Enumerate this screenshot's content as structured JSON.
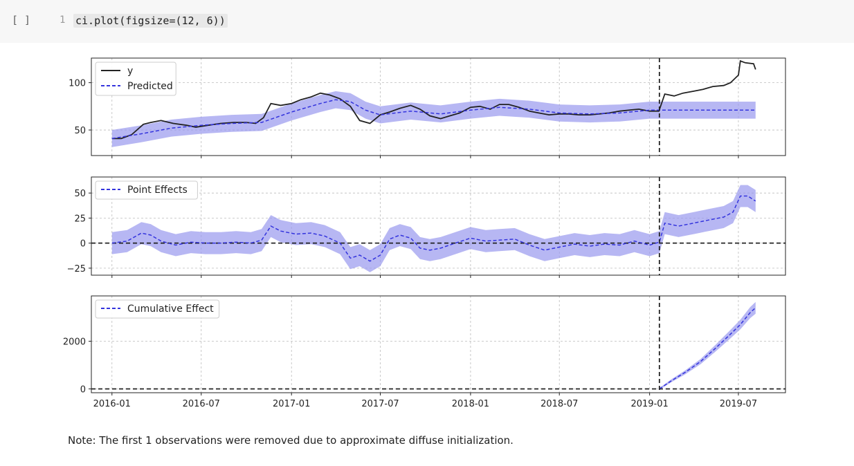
{
  "cell": {
    "run_indicator": "[ ]",
    "line_number": "1",
    "code": "ci.plot(figsize=(12, 6))"
  },
  "note": "Note: The first 1 observations were removed due to approximate diffuse initialization.",
  "colors": {
    "actual": "#222222",
    "predicted": "#3333dd",
    "band": "#9999ee",
    "grid": "#bbbbbb",
    "intervention": "#222222"
  },
  "chart_data": [
    {
      "type": "line",
      "intervention_date": "2019-01-21",
      "xlim": [
        "2015-11-20",
        "2019-10-05"
      ],
      "x_ticks": [
        "2016-01",
        "2016-07",
        "2017-01",
        "2017-07",
        "2018-01",
        "2018-07",
        "2019-01",
        "2019-07"
      ],
      "ylim": [
        23,
        126
      ],
      "y_ticks": [
        50,
        100
      ],
      "grid": true,
      "legend_position": "top-left",
      "series": [
        {
          "name": "y",
          "style": "solid",
          "x": [
            "2016-01-01",
            "2016-01-20",
            "2016-02-10",
            "2016-03-05",
            "2016-03-20",
            "2016-04-10",
            "2016-05-05",
            "2016-06-01",
            "2016-06-20",
            "2016-07-15",
            "2016-08-10",
            "2016-09-05",
            "2016-10-01",
            "2016-10-20",
            "2016-11-05",
            "2016-11-20",
            "2016-12-10",
            "2017-01-01",
            "2017-01-20",
            "2017-02-10",
            "2017-03-01",
            "2017-03-20",
            "2017-04-10",
            "2017-05-01",
            "2017-05-20",
            "2017-06-10",
            "2017-07-01",
            "2017-07-20",
            "2017-08-10",
            "2017-09-01",
            "2017-09-20",
            "2017-10-10",
            "2017-11-01",
            "2017-11-20",
            "2017-12-10",
            "2018-01-01",
            "2018-01-20",
            "2018-02-10",
            "2018-03-01",
            "2018-03-20",
            "2018-04-10",
            "2018-05-01",
            "2018-05-20",
            "2018-06-10",
            "2018-07-01",
            "2018-07-20",
            "2018-08-10",
            "2018-09-01",
            "2018-09-20",
            "2018-10-10",
            "2018-11-01",
            "2018-11-20",
            "2018-12-10",
            "2019-01-01",
            "2019-01-20",
            "2019-02-01",
            "2019-02-20",
            "2019-03-10",
            "2019-04-01",
            "2019-04-20",
            "2019-05-10",
            "2019-06-01",
            "2019-06-15",
            "2019-07-01",
            "2019-07-05",
            "2019-07-15",
            "2019-08-01",
            "2019-08-05"
          ],
          "values": [
            41,
            41,
            45,
            56,
            58,
            60,
            57,
            55,
            53,
            55,
            57,
            58,
            58,
            57,
            63,
            78,
            76,
            78,
            82,
            85,
            89,
            87,
            83,
            75,
            60,
            57,
            66,
            69,
            73,
            76,
            72,
            65,
            62,
            65,
            68,
            74,
            75,
            72,
            77,
            77,
            74,
            70,
            68,
            66,
            67,
            67,
            66,
            66,
            67,
            68,
            70,
            71,
            72,
            70,
            70,
            88,
            86,
            89,
            91,
            93,
            96,
            97,
            100,
            108,
            123,
            121,
            120,
            114
          ]
        },
        {
          "name": "Predicted",
          "style": "dashed",
          "x": [
            "2016-01-01",
            "2016-03-01",
            "2016-05-01",
            "2016-07-01",
            "2016-09-01",
            "2016-11-01",
            "2017-01-01",
            "2017-03-01",
            "2017-04-01",
            "2017-05-01",
            "2017-06-01",
            "2017-07-01",
            "2017-09-01",
            "2017-11-01",
            "2018-01-01",
            "2018-03-01",
            "2018-05-01",
            "2018-07-01",
            "2018-09-01",
            "2018-11-01",
            "2019-01-01",
            "2019-01-21",
            "2019-08-05"
          ],
          "values": [
            41,
            46,
            52,
            55,
            57,
            58,
            69,
            78,
            82,
            80,
            71,
            66,
            70,
            67,
            71,
            74,
            72,
            68,
            67,
            68,
            71,
            71,
            71
          ],
          "band_halfwidth": 9
        }
      ]
    },
    {
      "type": "line",
      "intervention_date": "2019-01-21",
      "xlim": [
        "2015-11-20",
        "2019-10-05"
      ],
      "x_ticks": [
        "2016-01",
        "2016-07",
        "2017-01",
        "2017-07",
        "2018-01",
        "2018-07",
        "2019-01",
        "2019-07"
      ],
      "ylim": [
        -32,
        66
      ],
      "y_ticks": [
        -25,
        0,
        25,
        50
      ],
      "zero_line": 0,
      "grid": true,
      "legend_position": "top-left",
      "series": [
        {
          "name": "Point Effects",
          "style": "dashed",
          "x": [
            "2016-01-01",
            "2016-02-01",
            "2016-03-01",
            "2016-03-20",
            "2016-04-10",
            "2016-05-10",
            "2016-06-10",
            "2016-07-10",
            "2016-08-10",
            "2016-09-10",
            "2016-10-10",
            "2016-11-01",
            "2016-11-20",
            "2016-12-10",
            "2017-01-10",
            "2017-02-10",
            "2017-03-10",
            "2017-04-10",
            "2017-05-01",
            "2017-05-20",
            "2017-06-10",
            "2017-07-01",
            "2017-07-20",
            "2017-08-10",
            "2017-09-01",
            "2017-09-20",
            "2017-10-10",
            "2017-11-01",
            "2017-12-01",
            "2018-01-01",
            "2018-02-01",
            "2018-03-01",
            "2018-04-01",
            "2018-05-01",
            "2018-06-01",
            "2018-07-01",
            "2018-08-01",
            "2018-09-01",
            "2018-10-01",
            "2018-11-01",
            "2018-12-01",
            "2019-01-01",
            "2019-01-21",
            "2019-02-01",
            "2019-03-01",
            "2019-04-01",
            "2019-05-01",
            "2019-06-01",
            "2019-06-20",
            "2019-07-05",
            "2019-07-20",
            "2019-08-05"
          ],
          "values": [
            0,
            2,
            10,
            8,
            2,
            -2,
            1,
            0,
            0,
            1,
            0,
            3,
            17,
            12,
            9,
            10,
            7,
            0,
            -15,
            -12,
            -18,
            -12,
            4,
            8,
            5,
            -5,
            -7,
            -5,
            0,
            5,
            2,
            3,
            4,
            -2,
            -7,
            -4,
            -1,
            -3,
            -1,
            -2,
            2,
            -2,
            1,
            20,
            17,
            20,
            23,
            26,
            31,
            47,
            47,
            42
          ],
          "band_halfwidth": 11
        }
      ]
    },
    {
      "type": "line",
      "intervention_date": "2019-01-21",
      "xlim": [
        "2015-11-20",
        "2019-10-05"
      ],
      "x_ticks": [
        "2016-01",
        "2016-07",
        "2017-01",
        "2017-07",
        "2018-01",
        "2018-07",
        "2019-01",
        "2019-07"
      ],
      "x_tick_labels": [
        "2016-01",
        "2016-07",
        "2017-01",
        "2017-07",
        "2018-01",
        "2018-07",
        "2019-01",
        "2019-07"
      ],
      "ylim": [
        -160,
        3900
      ],
      "y_ticks": [
        0,
        2000
      ],
      "zero_line": 0,
      "grid": true,
      "legend_position": "top-left",
      "series": [
        {
          "name": "Cumulative Effect",
          "style": "dashed",
          "x": [
            "2019-01-21",
            "2019-02-15",
            "2019-03-15",
            "2019-04-15",
            "2019-05-15",
            "2019-06-15",
            "2019-07-05",
            "2019-07-25",
            "2019-08-05"
          ],
          "values": [
            0,
            350,
            700,
            1150,
            1700,
            2300,
            2700,
            3200,
            3400
          ],
          "band_fraction": 0.06
        }
      ]
    }
  ]
}
